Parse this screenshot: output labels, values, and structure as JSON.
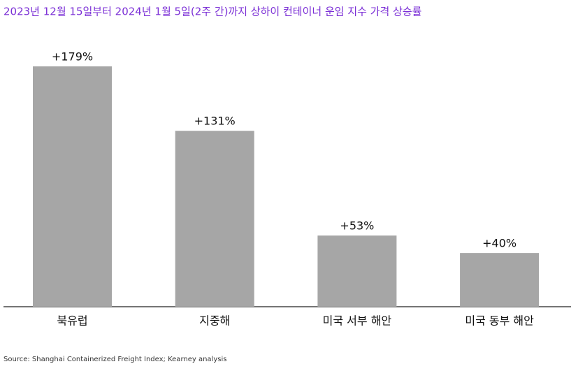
{
  "chart_data": {
    "type": "bar",
    "title": "2023년 12월 15일부터 2024년 1월 5일(2주 간)까지 상하이 컨테이너 운임 지수 가격 상승률",
    "categories": [
      "북유럽",
      "지중해",
      "미국 서부 해안",
      "미국 동부 해안"
    ],
    "values": [
      179,
      131,
      53,
      40
    ],
    "value_labels": [
      "+179%",
      "+131%",
      "+53%",
      "+40%"
    ],
    "color": "#a6a6a6",
    "title_color": "#7b2fd6",
    "source": "Source: Shanghai Containerized Freight Index; Kearney analysis"
  }
}
